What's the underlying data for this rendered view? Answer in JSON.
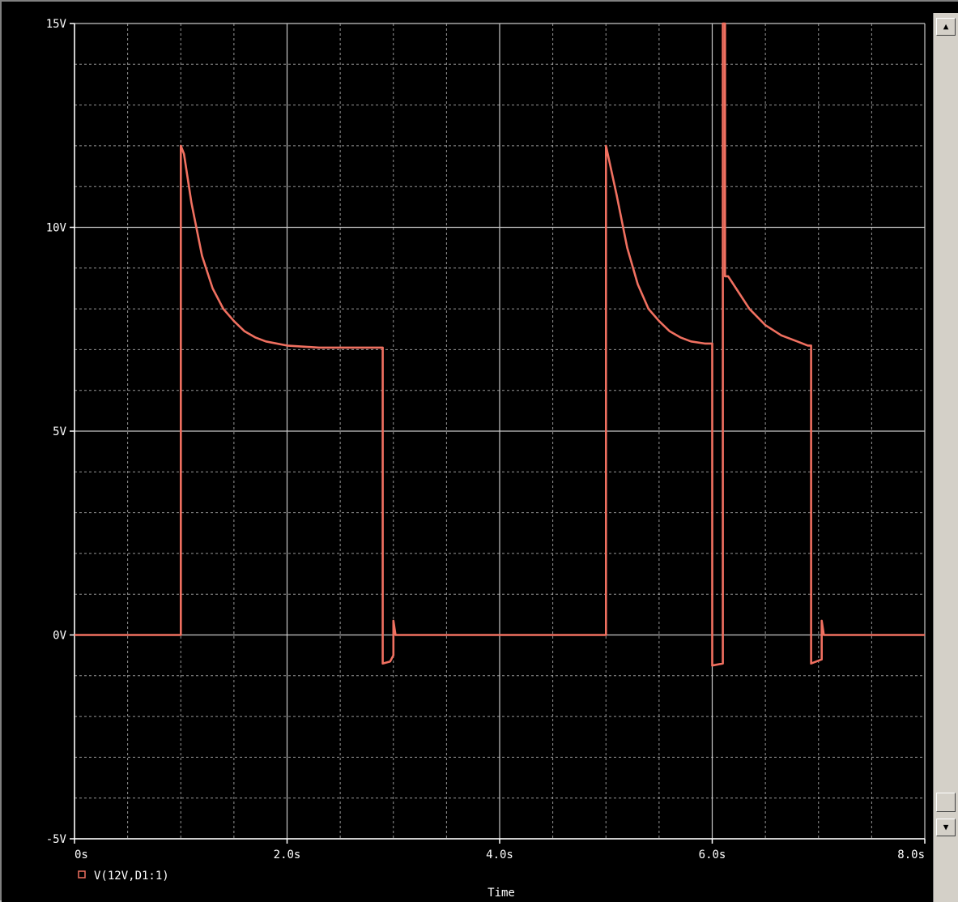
{
  "chart_data": {
    "type": "line",
    "xlabel": "Time",
    "ylabel": "",
    "xlim": [
      0,
      8
    ],
    "ylim": [
      -5,
      15
    ],
    "x_ticks": [
      {
        "value": 0,
        "label": "0s"
      },
      {
        "value": 2,
        "label": "2.0s"
      },
      {
        "value": 4,
        "label": "4.0s"
      },
      {
        "value": 6,
        "label": "6.0s"
      },
      {
        "value": 8,
        "label": "8.0s"
      }
    ],
    "y_ticks": [
      {
        "value": 15,
        "label": "15V"
      },
      {
        "value": 10,
        "label": "10V"
      },
      {
        "value": 5,
        "label": "5V"
      },
      {
        "value": 0,
        "label": "0V"
      },
      {
        "value": -5,
        "label": "-5V"
      }
    ],
    "grid": true,
    "legend_position": "bottom-left",
    "background_color": "#000000",
    "grid_color": "#c8c8c8",
    "series": [
      {
        "name": "V(12V,D1:1)",
        "color": "#f07060",
        "points": [
          [
            0,
            0
          ],
          [
            1.0,
            0
          ],
          [
            1.0,
            12.0
          ],
          [
            1.03,
            11.8
          ],
          [
            1.1,
            10.6
          ],
          [
            1.2,
            9.3
          ],
          [
            1.3,
            8.5
          ],
          [
            1.4,
            8.0
          ],
          [
            1.5,
            7.7
          ],
          [
            1.6,
            7.45
          ],
          [
            1.7,
            7.3
          ],
          [
            1.8,
            7.2
          ],
          [
            2.0,
            7.1
          ],
          [
            2.3,
            7.05
          ],
          [
            2.9,
            7.05
          ],
          [
            2.9,
            -0.7
          ],
          [
            2.97,
            -0.65
          ],
          [
            3.0,
            -0.5
          ],
          [
            3.0,
            0.35
          ],
          [
            3.02,
            0
          ],
          [
            5.0,
            0
          ],
          [
            5.0,
            12.0
          ],
          [
            5.1,
            10.8
          ],
          [
            5.2,
            9.5
          ],
          [
            5.3,
            8.6
          ],
          [
            5.4,
            8.0
          ],
          [
            5.5,
            7.7
          ],
          [
            5.6,
            7.45
          ],
          [
            5.7,
            7.3
          ],
          [
            5.8,
            7.2
          ],
          [
            5.93,
            7.15
          ],
          [
            6.0,
            7.15
          ],
          [
            6.0,
            -0.75
          ],
          [
            6.1,
            -0.7
          ],
          [
            6.1,
            15.0
          ],
          [
            6.1,
            15.0
          ],
          [
            6.12,
            15.0
          ],
          [
            6.12,
            8.8
          ],
          [
            6.15,
            8.8
          ],
          [
            6.25,
            8.4
          ],
          [
            6.35,
            8.0
          ],
          [
            6.5,
            7.6
          ],
          [
            6.65,
            7.35
          ],
          [
            6.8,
            7.2
          ],
          [
            6.9,
            7.1
          ],
          [
            6.93,
            7.1
          ],
          [
            6.93,
            -0.7
          ],
          [
            7.03,
            -0.6
          ],
          [
            7.03,
            0.35
          ],
          [
            7.05,
            0
          ],
          [
            8.0,
            0
          ]
        ]
      }
    ]
  },
  "scrollbar": {
    "up_icon": "scroll-up-arrow",
    "down_icon": "scroll-down-arrow"
  }
}
